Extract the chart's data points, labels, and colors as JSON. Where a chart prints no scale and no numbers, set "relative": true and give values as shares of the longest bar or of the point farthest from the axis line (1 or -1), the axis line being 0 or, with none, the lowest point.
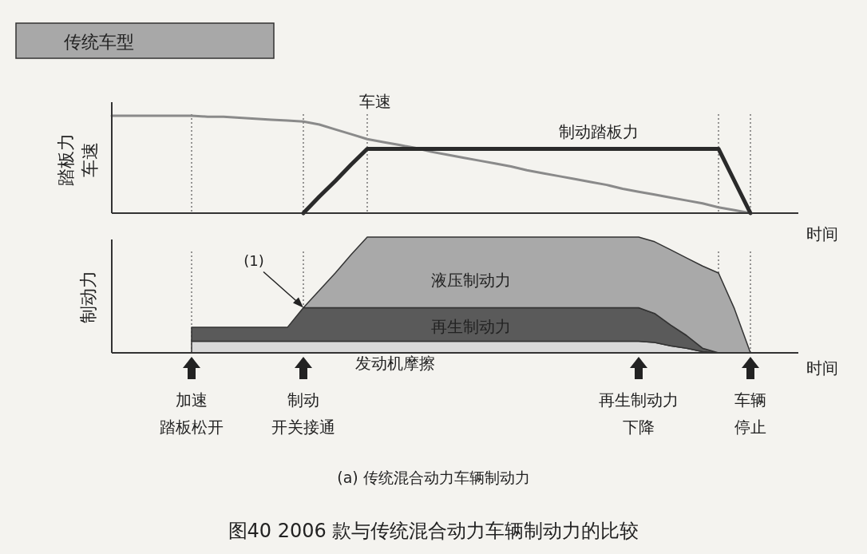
{
  "chart_data": [
    {
      "type": "line",
      "title": "传统车型",
      "ylabel": "踏板力车速",
      "xlabel": "时间",
      "relative": true,
      "categories": [
        null,
        null,
        null,
        null,
        null,
        null,
        null,
        null,
        null,
        null,
        null,
        null,
        null,
        null,
        null,
        null,
        null,
        null,
        null,
        null,
        null,
        null,
        null,
        null,
        null,
        null,
        null,
        null,
        null,
        null,
        null,
        null,
        null,
        null,
        null,
        null,
        null,
        null,
        null,
        null,
        null,
        null,
        null,
        null
      ],
      "series": [
        {
          "name": "车速",
          "color": "#8a8a8a",
          "values": [
            1,
            1,
            1,
            1,
            1,
            1,
            0.99,
            0.99,
            0.98,
            0.97,
            0.96,
            0.95,
            0.94,
            0.91,
            0.86,
            0.81,
            0.76,
            0.73,
            0.7,
            0.67,
            0.63,
            0.6,
            0.57,
            0.54,
            0.51,
            0.48,
            0.44,
            0.41,
            0.38,
            0.35,
            0.32,
            0.29,
            0.25,
            0.22,
            0.19,
            0.16,
            0.13,
            0.1,
            0.06,
            0.03,
            0,
            null,
            null,
            null
          ]
        },
        {
          "name": "制动踏板力",
          "color": "#2a2a2a",
          "values": [
            null,
            null,
            null,
            null,
            null,
            null,
            null,
            null,
            null,
            null,
            null,
            null,
            0,
            0.17,
            0.33,
            0.5,
            0.66,
            0.66,
            0.66,
            0.66,
            0.66,
            0.66,
            0.66,
            0.66,
            0.66,
            0.66,
            0.66,
            0.66,
            0.66,
            0.66,
            0.66,
            0.66,
            0.66,
            0.66,
            0.66,
            0.66,
            0.66,
            0.66,
            0.66,
            0.33,
            0,
            null,
            null,
            null
          ]
        }
      ],
      "line_style": "solid",
      "grid": "x"
    },
    {
      "type": "area",
      "stacked": true,
      "ylabel": "制动力",
      "xlabel": "时间",
      "relative": true,
      "grid": "x",
      "categories": [
        null,
        null,
        null,
        null,
        null,
        null,
        null,
        null,
        null,
        null,
        null,
        null,
        null,
        null,
        null,
        null,
        null,
        null,
        null,
        null,
        null,
        null,
        null,
        null,
        null,
        null,
        null,
        null,
        null,
        null,
        null,
        null,
        null,
        null,
        null,
        null,
        null,
        null,
        null,
        null,
        null,
        null,
        null,
        null
      ],
      "series": [
        {
          "name": "发动机摩擦",
          "color": "#d9d9d9",
          "values": [
            null,
            null,
            null,
            null,
            null,
            0.1,
            0.1,
            0.1,
            0.1,
            0.1,
            0.1,
            0.1,
            0.1,
            0.1,
            0.1,
            0.1,
            0.1,
            0.1,
            0.1,
            0.1,
            0.1,
            0.1,
            0.1,
            0.1,
            0.1,
            0.1,
            0.1,
            0.1,
            0.1,
            0.1,
            0.1,
            0.1,
            0.1,
            0.1,
            0.09,
            0.06,
            0.04,
            0.01,
            0,
            null,
            null,
            null,
            null,
            null
          ]
        },
        {
          "name": "再生制动力",
          "color": "#5a5a5a",
          "values": [
            null,
            null,
            null,
            null,
            null,
            0.12,
            0.12,
            0.12,
            0.12,
            0.12,
            0.12,
            0.12,
            0.29,
            0.29,
            0.29,
            0.29,
            0.29,
            0.29,
            0.29,
            0.29,
            0.29,
            0.29,
            0.29,
            0.29,
            0.29,
            0.29,
            0.29,
            0.29,
            0.29,
            0.29,
            0.29,
            0.29,
            0.29,
            0.29,
            0.25,
            0.18,
            0.11,
            0.03,
            0,
            null,
            null,
            null,
            null,
            null
          ]
        },
        {
          "name": "液压制动力",
          "color": "#a9a9a9",
          "values": [
            null,
            null,
            null,
            null,
            null,
            null,
            null,
            null,
            null,
            null,
            null,
            null,
            0,
            0.15,
            0.3,
            0.46,
            0.61,
            0.61,
            0.61,
            0.61,
            0.61,
            0.61,
            0.61,
            0.61,
            0.61,
            0.61,
            0.61,
            0.61,
            0.61,
            0.61,
            0.61,
            0.61,
            0.61,
            0.61,
            0.62,
            0.65,
            0.67,
            0.71,
            0.69,
            0.38,
            0,
            null,
            null,
            null
          ]
        }
      ],
      "annotations": [
        "(1)",
        "加速踏板松开",
        "制动开关接通",
        "再生制动力下降",
        "车辆停止",
        "(a) 传统混合动力车辆制动力",
        "图40 2006 款与传统混合动力车辆制动力的比较"
      ]
    }
  ]
}
